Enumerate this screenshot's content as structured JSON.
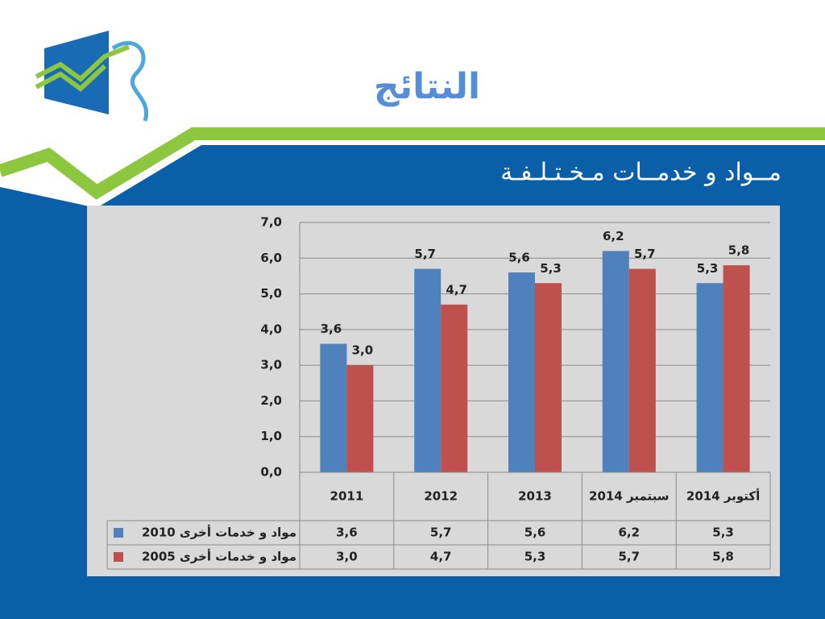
{
  "title": "النتائج",
  "subtitle": "مــواد و خدمــات مـخـتـلـفـة",
  "chart_data": {
    "type": "bar",
    "categories": [
      "2011",
      "2012",
      "2013",
      "سبتمبر 2014",
      "أكتوبر 2014"
    ],
    "series": [
      {
        "name": "مواد و خدمات أخرى 2010",
        "color": "#4f81bd",
        "values": [
          3.6,
          5.7,
          5.6,
          6.2,
          5.3
        ],
        "value_labels": [
          "3,6",
          "5,7",
          "5,6",
          "6,2",
          "5,3"
        ]
      },
      {
        "name": "مواد و خدمات أخرى 2005",
        "color": "#c0504d",
        "values": [
          3.0,
          4.7,
          5.3,
          5.7,
          5.8
        ],
        "value_labels": [
          "3,0",
          "4,7",
          "5,3",
          "5,7",
          "5,8"
        ]
      }
    ],
    "ylim": [
      0,
      7
    ],
    "yticks": [
      {
        "value": 0,
        "label": "0,0"
      },
      {
        "value": 1,
        "label": "1,0"
      },
      {
        "value": 2,
        "label": "2,0"
      },
      {
        "value": 3,
        "label": "3,0"
      },
      {
        "value": 4,
        "label": "4,0"
      },
      {
        "value": 5,
        "label": "5,0"
      },
      {
        "value": 6,
        "label": "6,0"
      },
      {
        "value": 7,
        "label": "7,0"
      }
    ],
    "grid": true,
    "data_table": true
  }
}
